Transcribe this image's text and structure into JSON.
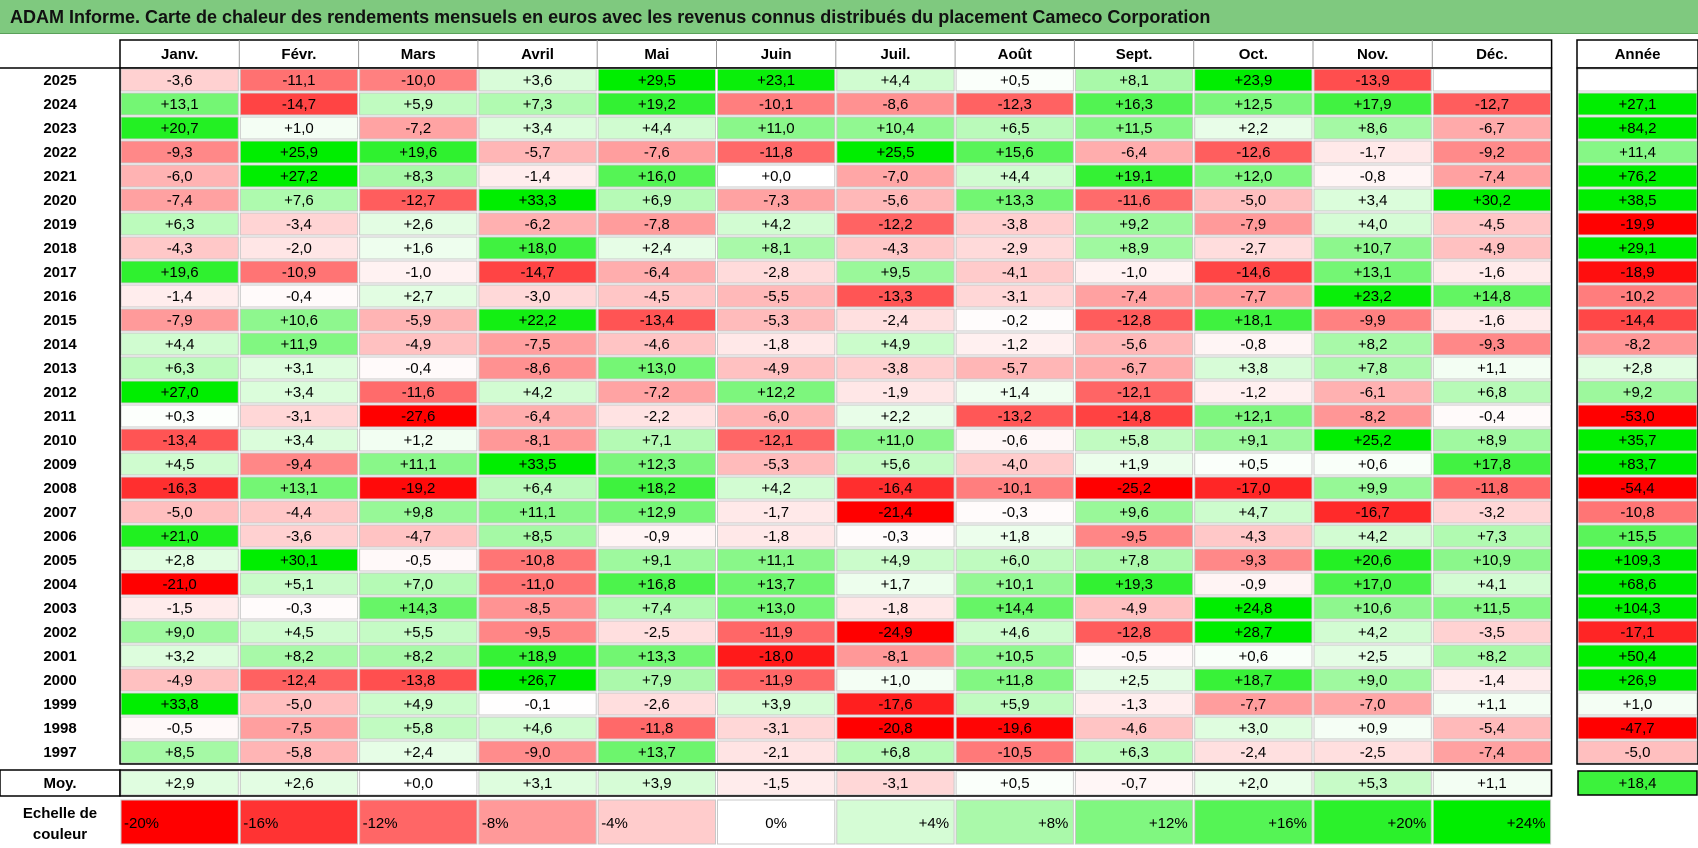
{
  "title": "ADAM Informe. Carte de chaleur des rendements mensuels en euros avec les revenus connus distribués du placement Cameco Corporation",
  "chart_data": {
    "type": "heatmap",
    "months": [
      "Janv.",
      "Févr.",
      "Mars",
      "Avril",
      "Mai",
      "Juin",
      "Juil.",
      "Août",
      "Sept.",
      "Oct.",
      "Nov.",
      "Déc."
    ],
    "year_header": "Année",
    "avg_label": "Moy.",
    "rows": [
      {
        "year": "2025",
        "values": [
          -3.6,
          -11.1,
          -10.0,
          3.6,
          29.5,
          23.1,
          4.4,
          0.5,
          8.1,
          23.9,
          -13.9,
          null
        ],
        "annual": null
      },
      {
        "year": "2024",
        "values": [
          13.1,
          -14.7,
          5.9,
          7.3,
          19.2,
          -10.1,
          -8.6,
          -12.3,
          16.3,
          12.5,
          17.9,
          -12.7
        ],
        "annual": 27.1
      },
      {
        "year": "2023",
        "values": [
          20.7,
          1.0,
          -7.2,
          3.4,
          4.4,
          11.0,
          10.4,
          6.5,
          11.5,
          2.2,
          8.6,
          -6.7
        ],
        "annual": 84.2
      },
      {
        "year": "2022",
        "values": [
          -9.3,
          25.9,
          19.6,
          -5.7,
          -7.6,
          -11.8,
          25.5,
          15.6,
          -6.4,
          -12.6,
          -1.7,
          -9.2
        ],
        "annual": 11.4
      },
      {
        "year": "2021",
        "values": [
          -6.0,
          27.2,
          8.3,
          -1.4,
          16.0,
          -0.0,
          -7.0,
          4.4,
          19.1,
          12.0,
          -0.8,
          -7.4
        ],
        "annual": 76.2
      },
      {
        "year": "2020",
        "values": [
          -7.4,
          7.6,
          -12.7,
          33.3,
          6.9,
          -7.3,
          -5.6,
          13.3,
          -11.6,
          -5.0,
          3.4,
          30.2
        ],
        "annual": 38.5
      },
      {
        "year": "2019",
        "values": [
          6.3,
          -3.4,
          2.6,
          -6.2,
          -7.8,
          4.2,
          -12.2,
          -3.8,
          9.2,
          -7.9,
          4.0,
          -4.5
        ],
        "annual": -19.9
      },
      {
        "year": "2018",
        "values": [
          -4.3,
          -2.0,
          1.6,
          18.0,
          2.4,
          8.1,
          -4.3,
          -2.9,
          8.9,
          -2.7,
          10.7,
          -4.9
        ],
        "annual": 29.1
      },
      {
        "year": "2017",
        "values": [
          19.6,
          -10.9,
          -1.0,
          -14.7,
          -6.4,
          -2.8,
          9.5,
          -4.1,
          -1.0,
          -14.6,
          13.1,
          -1.6
        ],
        "annual": -18.9
      },
      {
        "year": "2016",
        "values": [
          -1.4,
          -0.4,
          2.7,
          -3.0,
          -4.5,
          -5.5,
          -13.3,
          -3.1,
          -7.4,
          -7.7,
          23.2,
          14.8
        ],
        "annual": -10.2
      },
      {
        "year": "2015",
        "values": [
          -7.9,
          10.6,
          -5.9,
          22.2,
          -13.4,
          -5.3,
          -2.4,
          -0.2,
          -12.8,
          18.1,
          -9.9,
          -1.6
        ],
        "annual": -14.4
      },
      {
        "year": "2014",
        "values": [
          4.4,
          11.9,
          -4.9,
          -7.5,
          -4.6,
          -1.8,
          4.9,
          -1.2,
          -5.6,
          -0.8,
          8.2,
          -9.3
        ],
        "annual": -8.2
      },
      {
        "year": "2013",
        "values": [
          6.3,
          3.1,
          -0.4,
          -8.6,
          13.0,
          -4.9,
          -3.8,
          -5.7,
          -6.7,
          3.8,
          7.8,
          1.1
        ],
        "annual": 2.8
      },
      {
        "year": "2012",
        "values": [
          27.0,
          3.4,
          -11.6,
          4.2,
          -7.2,
          12.2,
          -1.9,
          1.4,
          -12.1,
          -1.2,
          -6.1,
          6.8
        ],
        "annual": 9.2
      },
      {
        "year": "2011",
        "values": [
          0.3,
          -3.1,
          -27.6,
          -6.4,
          -2.2,
          -6.0,
          2.2,
          -13.2,
          -14.8,
          12.1,
          -8.2,
          -0.4
        ],
        "annual": -53.0
      },
      {
        "year": "2010",
        "values": [
          -13.4,
          3.4,
          1.2,
          -8.1,
          7.1,
          -12.1,
          11.0,
          -0.6,
          5.8,
          9.1,
          25.2,
          8.9
        ],
        "annual": 35.7
      },
      {
        "year": "2009",
        "values": [
          4.5,
          -9.4,
          11.1,
          33.5,
          12.3,
          -5.3,
          5.6,
          -4.0,
          1.9,
          0.5,
          0.6,
          17.8
        ],
        "annual": 83.7
      },
      {
        "year": "2008",
        "values": [
          -16.3,
          13.1,
          -19.2,
          6.4,
          18.2,
          4.2,
          -16.4,
          -10.1,
          -25.2,
          -17.0,
          9.9,
          -11.8
        ],
        "annual": -54.4
      },
      {
        "year": "2007",
        "values": [
          -5.0,
          -4.4,
          9.8,
          11.1,
          12.9,
          -1.7,
          -21.4,
          -0.3,
          9.6,
          4.7,
          -16.7,
          -3.2
        ],
        "annual": -10.8
      },
      {
        "year": "2006",
        "values": [
          21.0,
          -3.6,
          -4.7,
          8.5,
          -0.9,
          -1.8,
          -0.3,
          1.8,
          -9.5,
          -4.3,
          4.2,
          7.3
        ],
        "annual": 15.5
      },
      {
        "year": "2005",
        "values": [
          2.8,
          30.1,
          -0.5,
          -10.8,
          9.1,
          11.1,
          4.9,
          6.0,
          7.8,
          -9.3,
          20.6,
          10.9
        ],
        "annual": 109.3
      },
      {
        "year": "2004",
        "values": [
          -21.0,
          5.1,
          7.0,
          -11.0,
          16.8,
          13.7,
          1.7,
          10.1,
          19.3,
          -0.9,
          17.0,
          4.1
        ],
        "annual": 68.6
      },
      {
        "year": "2003",
        "values": [
          -1.5,
          -0.3,
          14.3,
          -8.5,
          7.4,
          13.0,
          -1.8,
          14.4,
          -4.9,
          24.8,
          10.6,
          11.5
        ],
        "annual": 104.3
      },
      {
        "year": "2002",
        "values": [
          9.0,
          4.5,
          5.5,
          -9.5,
          -2.5,
          -11.9,
          -24.9,
          4.6,
          -12.8,
          28.7,
          4.2,
          -3.5
        ],
        "annual": -17.1
      },
      {
        "year": "2001",
        "values": [
          3.2,
          8.2,
          8.2,
          18.9,
          13.3,
          -18.0,
          -8.1,
          10.5,
          -0.5,
          0.6,
          2.5,
          8.2
        ],
        "annual": 50.4
      },
      {
        "year": "2000",
        "values": [
          -4.9,
          -12.4,
          -13.8,
          26.7,
          7.9,
          -11.9,
          1.0,
          11.8,
          2.5,
          18.7,
          9.0,
          -1.4
        ],
        "annual": 26.9
      },
      {
        "year": "1999",
        "values": [
          33.8,
          -5.0,
          4.9,
          -0.1,
          -2.6,
          3.9,
          -17.6,
          5.9,
          -1.3,
          -7.7,
          -7.0,
          1.1
        ],
        "annual": 1.0
      },
      {
        "year": "1998",
        "values": [
          -0.5,
          -7.5,
          5.8,
          4.6,
          -11.8,
          -3.1,
          -20.8,
          -19.6,
          -4.6,
          3.0,
          0.9,
          -5.4
        ],
        "annual": -47.7
      },
      {
        "year": "1997",
        "values": [
          8.5,
          -5.8,
          2.4,
          -9.0,
          13.7,
          -2.1,
          6.8,
          -10.5,
          6.3,
          -2.4,
          -2.5,
          -7.4
        ],
        "annual": -5.0
      }
    ],
    "averages": [
      2.9,
      2.6,
      0.0,
      3.1,
      3.9,
      -1.5,
      -3.1,
      0.5,
      -0.7,
      2.0,
      5.3,
      1.1
    ],
    "average_annual": 18.4,
    "scale_label": "Echelle de couleur",
    "scale": [
      {
        "label": "-20%",
        "value": -20
      },
      {
        "label": "-16%",
        "value": -16
      },
      {
        "label": "-12%",
        "value": -12
      },
      {
        "label": "-8%",
        "value": -8
      },
      {
        "label": "-4%",
        "value": -4
      },
      {
        "label": "0%",
        "value": 0
      },
      {
        "label": "+4%",
        "value": 4
      },
      {
        "label": "+8%",
        "value": 8
      },
      {
        "label": "+12%",
        "value": 12
      },
      {
        "label": "+16%",
        "value": 16
      },
      {
        "label": "+20%",
        "value": 20
      },
      {
        "label": "+24%",
        "value": 24
      }
    ],
    "colors": {
      "negative_max": "#ff0000",
      "neutral": "#ffffff",
      "positive_max": "#00ee00",
      "title_bar": "#7fc97f"
    }
  }
}
